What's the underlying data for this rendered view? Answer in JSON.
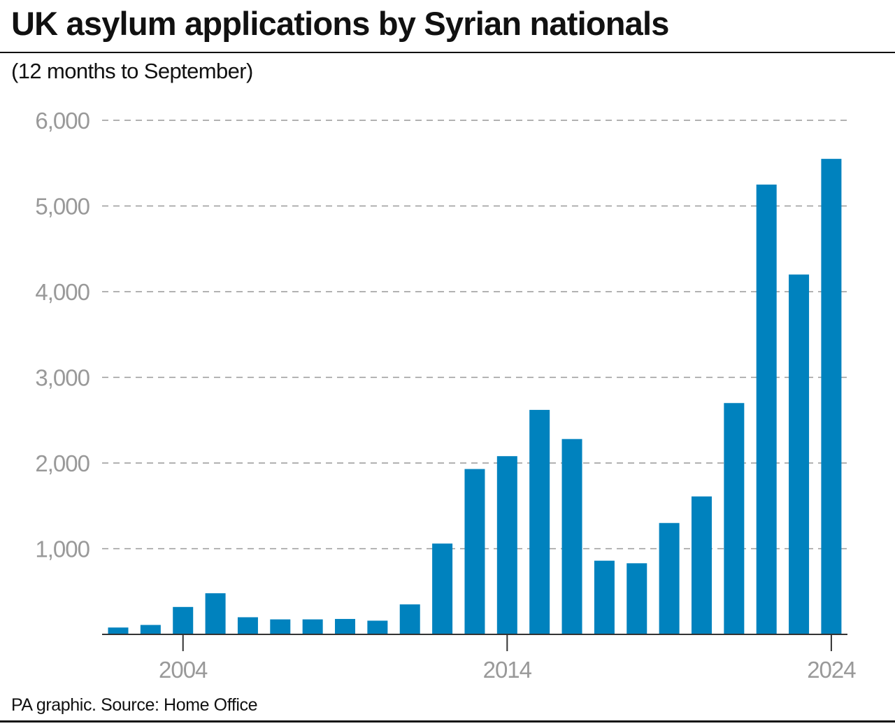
{
  "header": {
    "title": "UK asylum applications by Syrian nationals",
    "subtitle": "(12 months to September)"
  },
  "footer": {
    "source": "PA graphic. Source: Home Office"
  },
  "colors": {
    "bar": "#0082be",
    "grid": "#999999",
    "tick_text": "#999999",
    "text": "#111111"
  },
  "chart_data": {
    "type": "bar",
    "title": "UK asylum applications by Syrian nationals",
    "subtitle": "(12 months to September)",
    "categories": [
      "2002",
      "2003",
      "2004",
      "2005",
      "2006",
      "2007",
      "2008",
      "2009",
      "2010",
      "2011",
      "2012",
      "2013",
      "2014",
      "2015",
      "2016",
      "2017",
      "2018",
      "2019",
      "2020",
      "2021",
      "2022",
      "2023",
      "2024"
    ],
    "values": [
      80,
      110,
      320,
      480,
      200,
      175,
      175,
      180,
      160,
      350,
      1060,
      1930,
      2080,
      2620,
      2280,
      860,
      830,
      1300,
      1610,
      2700,
      5250,
      4200,
      5550
    ],
    "x_tick_labels": [
      "2004",
      "2014",
      "2024"
    ],
    "y_tick_labels": [
      "1,000",
      "2,000",
      "3,000",
      "4,000",
      "5,000",
      "6,000"
    ],
    "y_ticks": [
      1000,
      2000,
      3000,
      4000,
      5000,
      6000
    ],
    "ylim": [
      0,
      6000
    ],
    "xlabel": "",
    "ylabel": "",
    "grid": "horizontal dashed",
    "legend": "none"
  }
}
